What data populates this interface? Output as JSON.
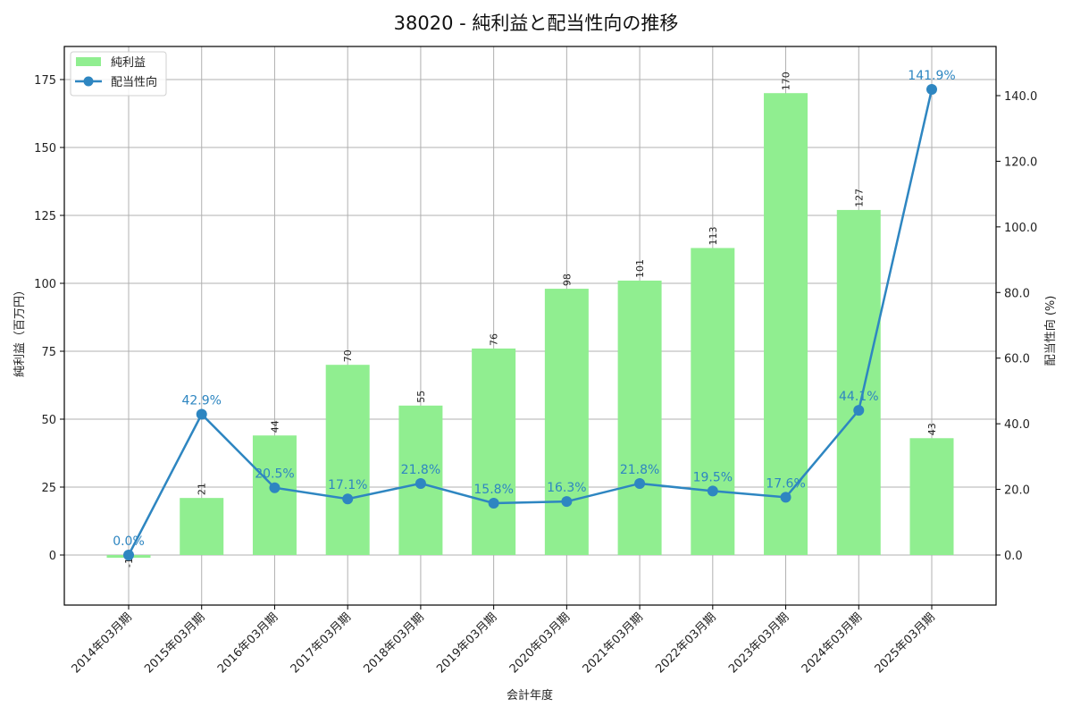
{
  "title": "38020 - 純利益と配当性向の推移",
  "colors": {
    "bar": "#90ee90",
    "line": "#2e86c1",
    "grid": "#b0b0b0",
    "axis": "#000000"
  },
  "legend": {
    "bar_label": "純利益",
    "line_label": "配当性向"
  },
  "chart_data": {
    "type": "bar+line",
    "title": "38020 - 純利益と配当性向の推移",
    "xlabel": "会計年度",
    "ylabel_left": "純利益（百万円）",
    "ylabel_right": "配当性向 (%)",
    "categories": [
      "2014年03月期",
      "2015年03月期",
      "2016年03月期",
      "2017年03月期",
      "2018年03月期",
      "2019年03月期",
      "2020年03月期",
      "2021年03月期",
      "2022年03月期",
      "2023年03月期",
      "2024年03月期",
      "2025年03月期"
    ],
    "series": [
      {
        "name": "純利益",
        "type": "bar",
        "axis": "left",
        "values": [
          -1,
          21,
          44,
          70,
          55,
          76,
          98,
          101,
          113,
          170,
          127,
          43
        ],
        "labels": [
          "-1",
          "21",
          "44",
          "70",
          "55",
          "76",
          "98",
          "101",
          "113",
          "170",
          "127",
          "43"
        ]
      },
      {
        "name": "配当性向",
        "type": "line",
        "axis": "right",
        "values": [
          0.0,
          42.9,
          20.5,
          17.1,
          21.8,
          15.8,
          16.3,
          21.8,
          19.5,
          17.6,
          44.1,
          141.9
        ],
        "labels": [
          "0.0%",
          "42.9%",
          "20.5%",
          "17.1%",
          "21.8%",
          "15.8%",
          "16.3%",
          "21.8%",
          "19.5%",
          "17.6%",
          "44.1%",
          "141.9%"
        ]
      }
    ],
    "ylim_left": [
      -18.5,
      187
    ],
    "ylim_right": [
      -15.3,
      155
    ],
    "yticks_left": [
      "0",
      "25",
      "50",
      "75",
      "100",
      "125",
      "150",
      "175"
    ],
    "yticks_right": [
      "0.0",
      "20.0",
      "40.0",
      "60.0",
      "80.0",
      "100.0",
      "120.0",
      "140.0"
    ],
    "grid": true,
    "legend_position": "upper left"
  }
}
